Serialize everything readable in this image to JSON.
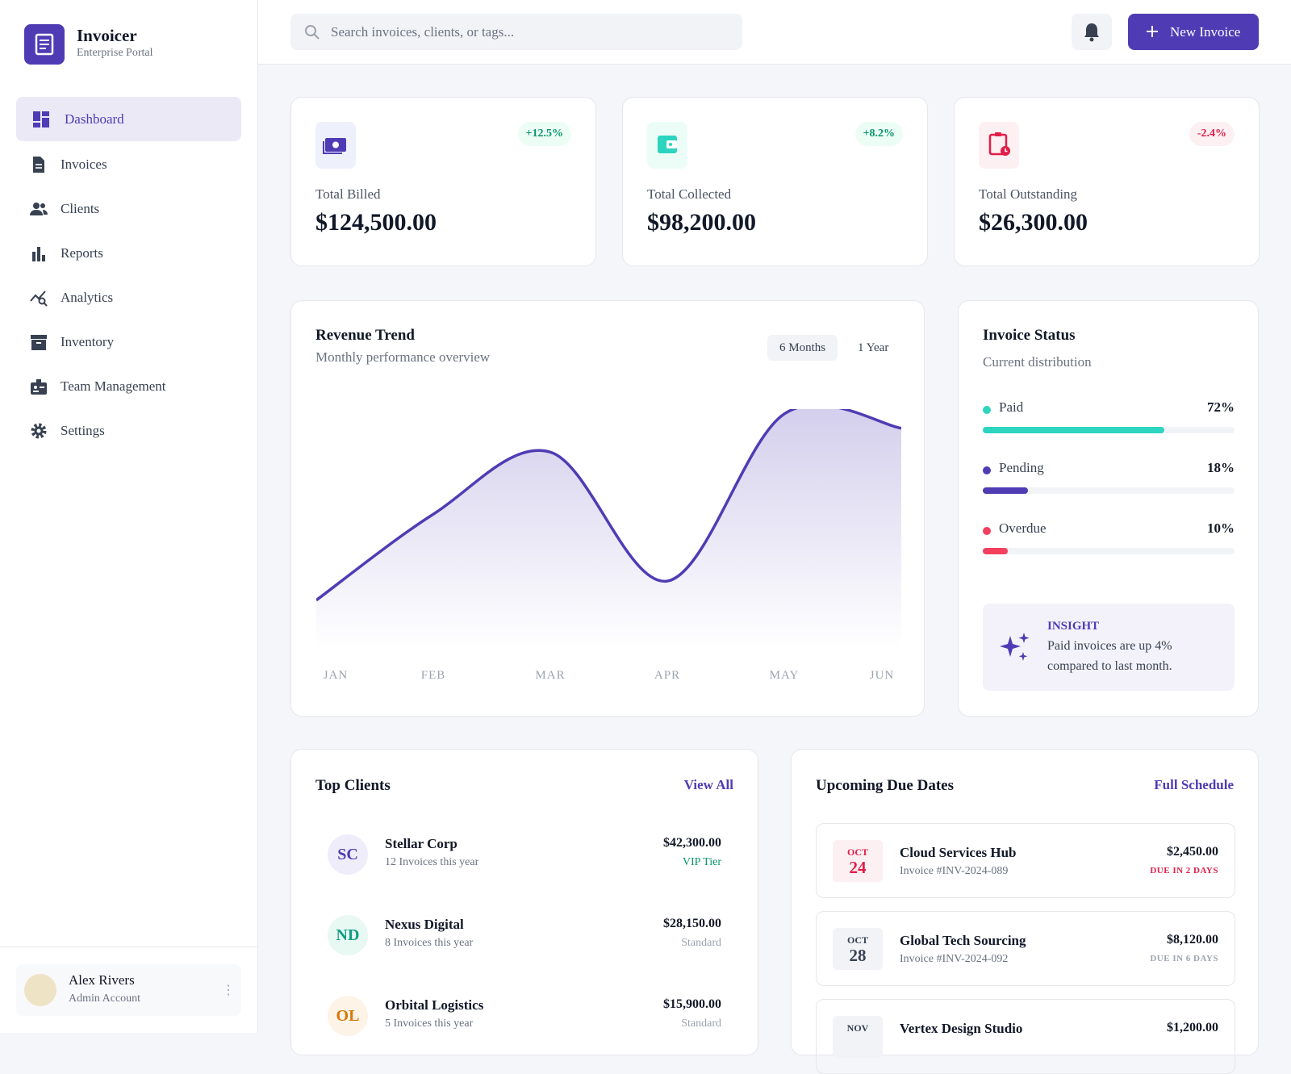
{
  "sidebar": {
    "brand": "Invoicer",
    "subtitle": "Enterprise Portal",
    "nav": [
      "Dashboard",
      "Invoices",
      "Clients",
      "Reports",
      "Analytics",
      "Inventory",
      "Team Management",
      "Settings"
    ],
    "user": {
      "name": "Alex Rivers",
      "role": "Admin Account"
    }
  },
  "header": {
    "search_placeholder": "Search invoices, clients, or tags...",
    "button": "New Invoice"
  },
  "stats": [
    {
      "label": "Total Billed",
      "value": "$124,500.00",
      "change": "+12.5%"
    },
    {
      "label": "Total Collected",
      "value": "$98,200.00",
      "change": "+8.2%"
    },
    {
      "label": "Total Outstanding",
      "value": "$26,300.00",
      "change": "-2.4%"
    }
  ],
  "revenue": {
    "title": "Revenue Trend",
    "subtitle": "Monthly performance overview",
    "ranges": [
      "6 Months",
      "1 Year"
    ],
    "chart_data": {
      "type": "area",
      "categories": [
        "JAN",
        "FEB",
        "MAR",
        "APR",
        "MAY",
        "JUN"
      ],
      "values": [
        20,
        56,
        82,
        28,
        98,
        92
      ],
      "ylim": [
        0,
        100
      ],
      "color": "#4f3cb4"
    }
  },
  "status": {
    "title": "Invoice Status",
    "subtitle": "Current distribution",
    "items": [
      {
        "name": "Paid",
        "value": 72,
        "value_label": "72%",
        "color": "#2dd4bf"
      },
      {
        "name": "Pending",
        "value": 18,
        "value_label": "18%",
        "color": "#4f3cb4"
      },
      {
        "name": "Overdue",
        "value": 10,
        "value_label": "10%",
        "color": "#f43f5e"
      }
    ],
    "insight": {
      "label": "INSIGHT",
      "text": "Paid invoices are up 4% compared to last month."
    }
  },
  "clients": {
    "title": "Top Clients",
    "link": "View All",
    "rows": [
      {
        "initials": "SC",
        "name": "Stellar Corp",
        "detail": "12 Invoices this year",
        "amount": "$42,300.00",
        "tier": "VIP Tier"
      },
      {
        "initials": "ND",
        "name": "Nexus Digital",
        "detail": "8 Invoices this year",
        "amount": "$28,150.00",
        "tier": "Standard"
      },
      {
        "initials": "OL",
        "name": "Orbital Logistics",
        "detail": "5 Invoices this year",
        "amount": "$15,900.00",
        "tier": "Standard"
      }
    ]
  },
  "due": {
    "title": "Upcoming Due Dates",
    "link": "Full Schedule",
    "rows": [
      {
        "month": "OCT",
        "day": "24",
        "name": "Cloud Services Hub",
        "invoice": "Invoice #INV-2024-089",
        "amount": "$2,450.00",
        "status": "DUE IN 2 DAYS"
      },
      {
        "month": "OCT",
        "day": "28",
        "name": "Global Tech Sourcing",
        "invoice": "Invoice #INV-2024-092",
        "amount": "$8,120.00",
        "status": "DUE IN 6 DAYS"
      },
      {
        "month": "NOV",
        "name": "Vertex Design Studio",
        "amount": "$1,200.00"
      }
    ]
  }
}
